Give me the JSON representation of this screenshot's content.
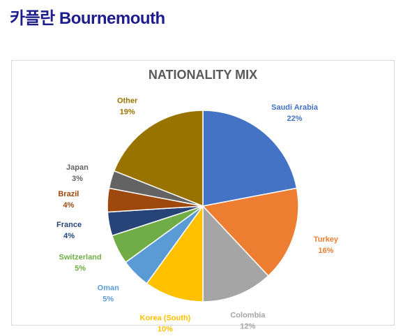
{
  "page": {
    "heading": "카플란 Bournemouth"
  },
  "chart_data": {
    "type": "pie",
    "title": "NATIONALITY MIX",
    "categories": [
      "Saudi Arabia",
      "Turkey",
      "Colombia",
      "Korea (South)",
      "Oman",
      "Switzerland",
      "France",
      "Brazil",
      "Japan",
      "Other"
    ],
    "values": [
      22,
      16,
      12,
      10,
      5,
      5,
      4,
      4,
      3,
      19
    ],
    "value_labels": [
      "22%",
      "16%",
      "12%",
      "10%",
      "5%",
      "5%",
      "4%",
      "4%",
      "3%",
      "19%"
    ],
    "colors": [
      "#4472c4",
      "#ed7d31",
      "#a5a5a5",
      "#ffc000",
      "#5b9bd5",
      "#70ad47",
      "#264478",
      "#9e480e",
      "#636363",
      "#997300"
    ],
    "legend": "labels-outside"
  }
}
